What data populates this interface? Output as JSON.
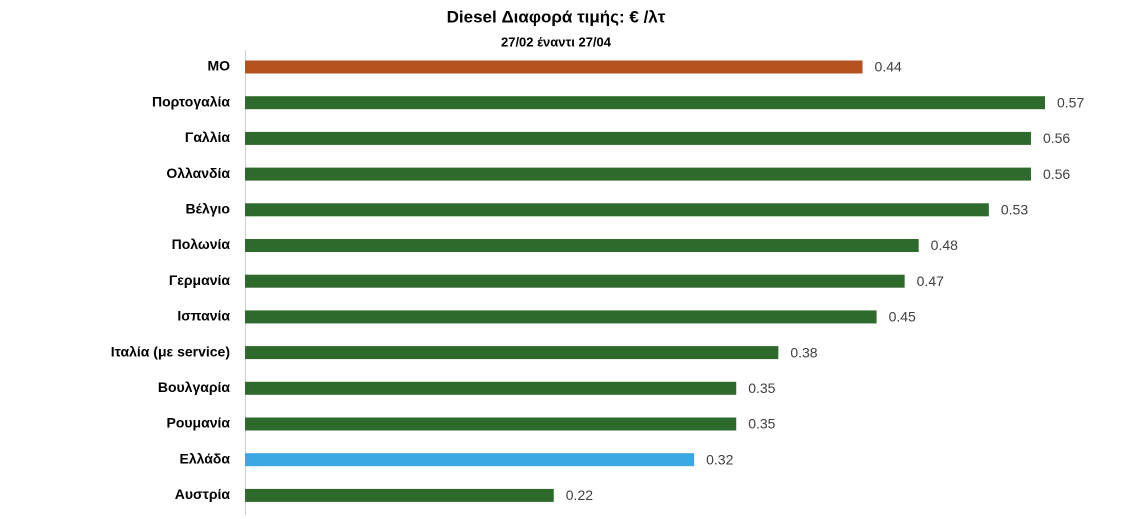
{
  "chart_data": {
    "type": "bar",
    "orientation": "horizontal",
    "title": "Diesel Διαφορά τιμής: € /λτ",
    "subtitle": "27/02 έναντι 27/04",
    "categories": [
      "ΜΟ",
      "Πορτογαλία",
      "Γαλλία",
      "Ολλανδία",
      "Βέλγιο",
      "Πολωνία",
      "Γερμανία",
      "Ισπανία",
      "Ιταλία (με service)",
      "Βουλγαρία",
      "Ρουμανία",
      "Ελλάδα",
      "Αυστρία"
    ],
    "values": [
      0.44,
      0.57,
      0.56,
      0.56,
      0.53,
      0.48,
      0.47,
      0.45,
      0.38,
      0.35,
      0.35,
      0.32,
      0.22
    ],
    "colors": [
      "#b4521f",
      "#2e6a2b",
      "#2e6a2b",
      "#2e6a2b",
      "#2e6a2b",
      "#2e6a2b",
      "#2e6a2b",
      "#2e6a2b",
      "#2e6a2b",
      "#2e6a2b",
      "#2e6a2b",
      "#3ba7e3",
      "#2e6a2b"
    ]
  }
}
